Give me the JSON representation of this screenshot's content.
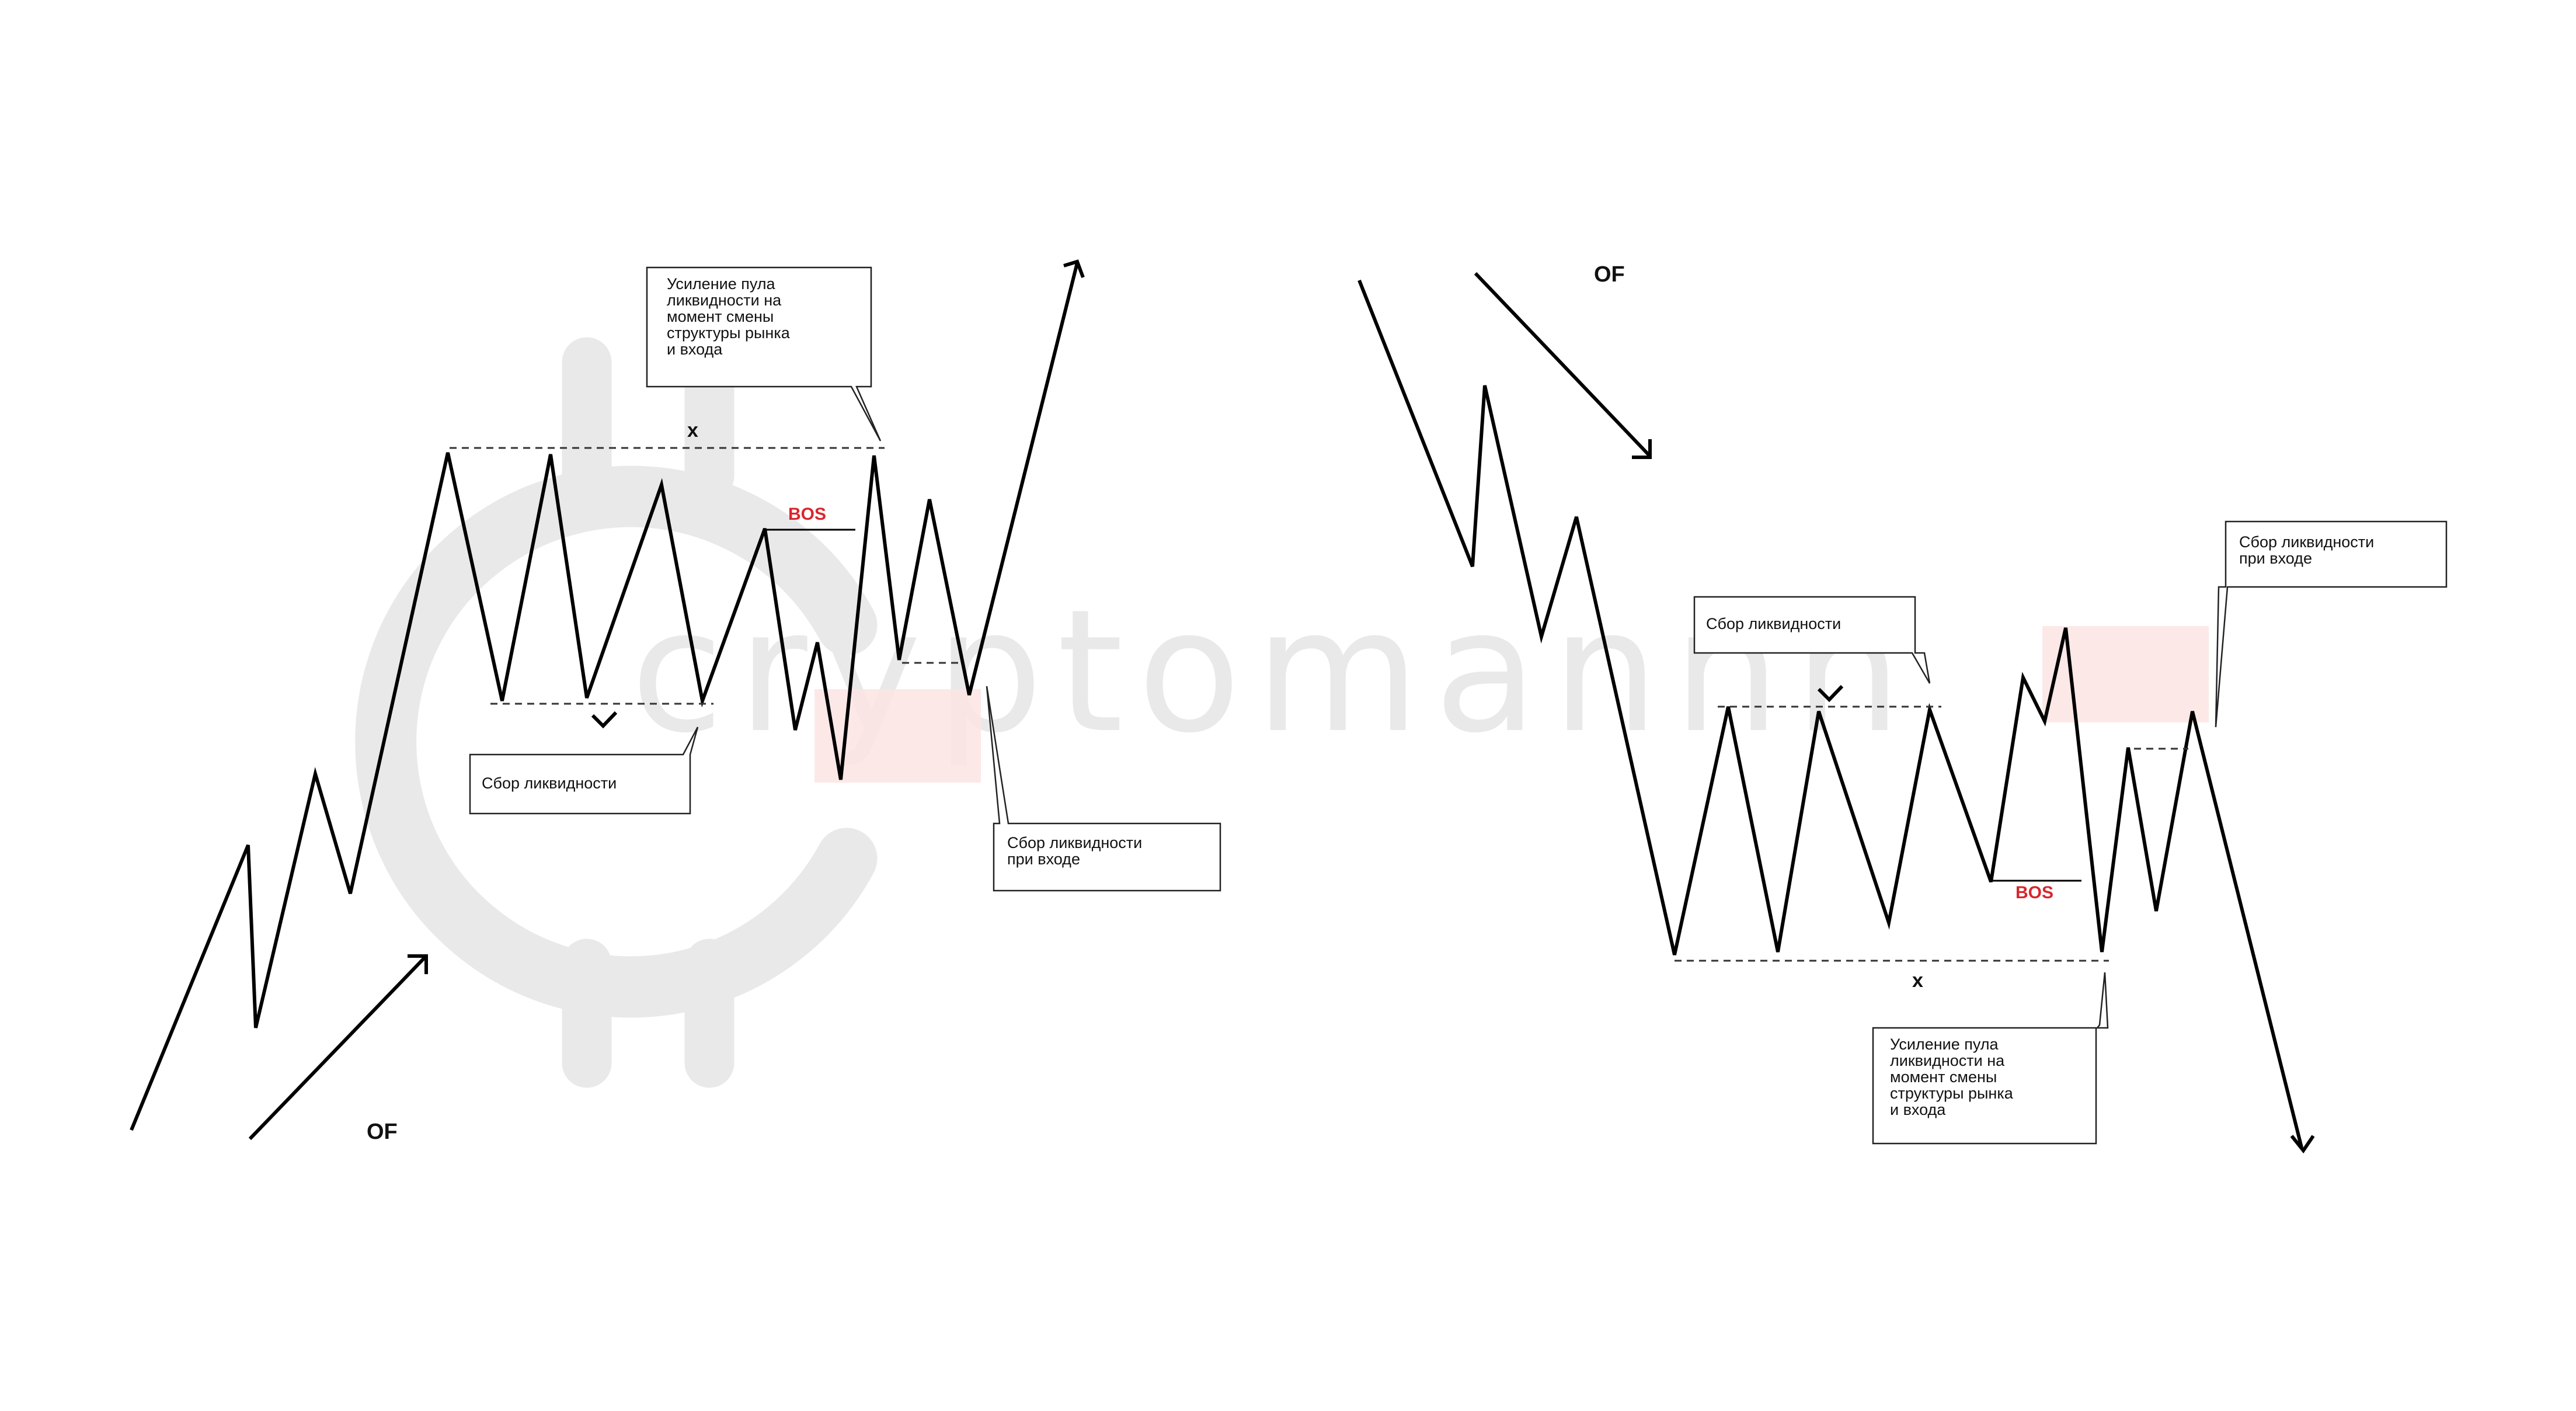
{
  "watermark": {
    "text": "cryptomannn"
  },
  "left": {
    "of_label": "OF",
    "x_label": "x",
    "bos_label": "BOS",
    "callout_top": [
      "Усиление пула",
      "ликвидности на",
      "момент смены",
      "структуры рынка",
      "и входа"
    ],
    "callout_bottom_left": [
      "Сбор ликвидности"
    ],
    "callout_entry": [
      "Сбор ликвидности",
      "при входе"
    ]
  },
  "right": {
    "of_label": "OF",
    "x_label": "x",
    "bos_label": "BOS",
    "callout_top": [
      "Сбор ликвидности"
    ],
    "callout_entry": [
      "Сбор ликвидности",
      "при входе"
    ],
    "callout_bottom": [
      "Усиление пула",
      "ликвидности на",
      "момент смены",
      "структуры рынка",
      "и входа"
    ]
  },
  "colors": {
    "line": "#000000",
    "bos": "#d9262c",
    "zone": "#fde4e4",
    "watermark": "#e9e9e9"
  }
}
